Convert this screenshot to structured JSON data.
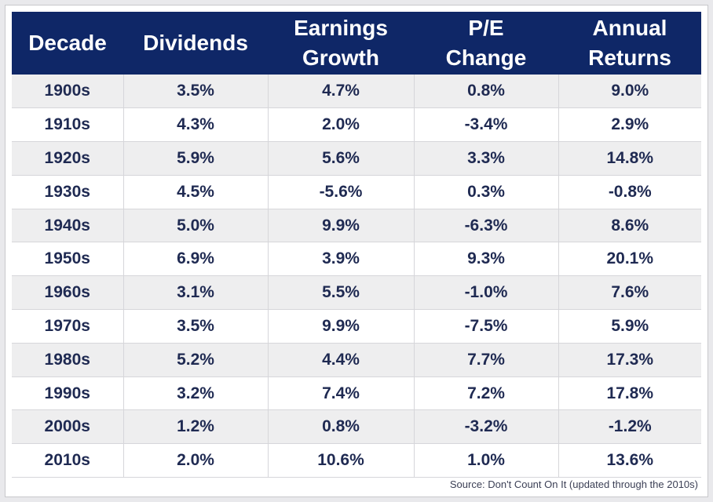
{
  "chart_data": {
    "type": "table",
    "columns": [
      "Decade",
      "Dividends",
      "Earnings Growth",
      "P/E Change",
      "Annual Returns"
    ],
    "header": [
      {
        "line1": "Decade",
        "line2": ""
      },
      {
        "line1": "Dividends",
        "line2": ""
      },
      {
        "line1": "Earnings",
        "line2": "Growth"
      },
      {
        "line1": "P/E",
        "line2": "Change"
      },
      {
        "line1": "Annual",
        "line2": "Returns"
      }
    ],
    "rows": [
      [
        "1900s",
        "3.5%",
        "4.7%",
        "0.8%",
        "9.0%"
      ],
      [
        "1910s",
        "4.3%",
        "2.0%",
        "-3.4%",
        "2.9%"
      ],
      [
        "1920s",
        "5.9%",
        "5.6%",
        "3.3%",
        "14.8%"
      ],
      [
        "1930s",
        "4.5%",
        "-5.6%",
        "0.3%",
        "-0.8%"
      ],
      [
        "1940s",
        "5.0%",
        "9.9%",
        "-6.3%",
        "8.6%"
      ],
      [
        "1950s",
        "6.9%",
        "3.9%",
        "9.3%",
        "20.1%"
      ],
      [
        "1960s",
        "3.1%",
        "5.5%",
        "-1.0%",
        "7.6%"
      ],
      [
        "1970s",
        "3.5%",
        "9.9%",
        "-7.5%",
        "5.9%"
      ],
      [
        "1980s",
        "5.2%",
        "4.4%",
        "7.7%",
        "17.3%"
      ],
      [
        "1990s",
        "3.2%",
        "7.4%",
        "7.2%",
        "17.8%"
      ],
      [
        "2000s",
        "1.2%",
        "0.8%",
        "-3.2%",
        "-1.2%"
      ],
      [
        "2010s",
        "2.0%",
        "10.6%",
        "1.0%",
        "13.6%"
      ]
    ],
    "source": "Source: Don't Count On It (updated through the 2010s)"
  },
  "colors": {
    "header_bg": "#0f2767",
    "header_text": "#ffffff",
    "cell_text": "#1f2a52",
    "row_odd": "#eeeeef",
    "row_even": "#ffffff"
  }
}
